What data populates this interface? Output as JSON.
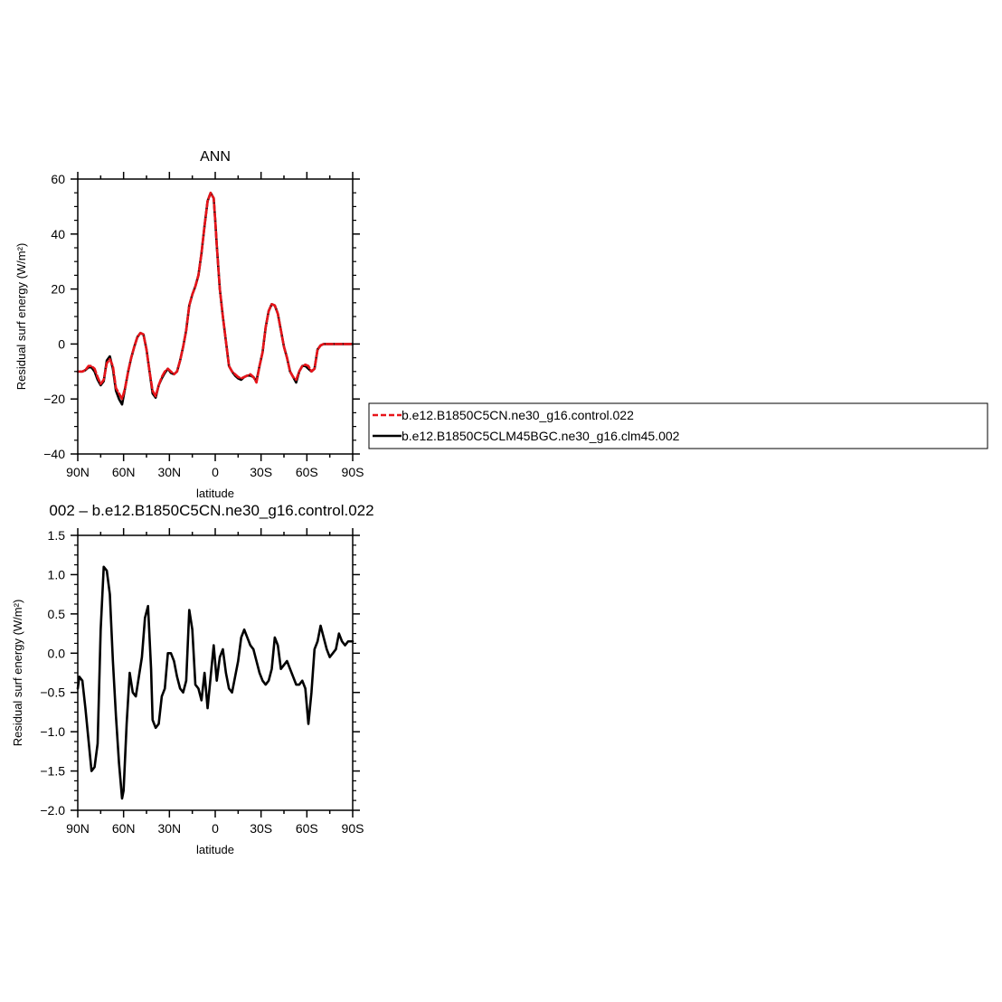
{
  "colors": {
    "control": "#e8141a",
    "clm45": "#000000",
    "axis": "#000000",
    "background": "#ffffff"
  },
  "top_panel": {
    "title": "ANN",
    "ylabel": "Residual surf energy (W/m²)",
    "xlabel": "latitude"
  },
  "bottom_panel": {
    "title": "002 – b.e12.B1850C5CN.ne30_g16.control.022",
    "ylabel": "Residual surf energy (W/m²)",
    "xlabel": "latitude"
  },
  "legend": {
    "items": [
      {
        "label": "b.e12.B1850C5CN.ne30_g16.control.022",
        "style": "dashed",
        "color": "#e8141a"
      },
      {
        "label": "b.e12.B1850C5CLM45BGC.ne30_g16.clm45.002",
        "style": "solid",
        "color": "#000000"
      }
    ]
  },
  "chart_data": [
    {
      "type": "line",
      "title": "ANN",
      "xlabel": "latitude",
      "ylabel": "Residual surf energy (W/m²)",
      "xlim": [
        90,
        -90
      ],
      "ylim": [
        -40,
        60
      ],
      "xticks": [
        90,
        60,
        30,
        0,
        -30,
        -60,
        -90
      ],
      "xtick_labels": [
        "90N",
        "60N",
        "30N",
        "0",
        "30S",
        "60S",
        "90S"
      ],
      "yticks": [
        -40,
        -20,
        0,
        20,
        40,
        60
      ],
      "ytick_labels": [
        "−40",
        "−20",
        "0",
        "20",
        "40",
        "60"
      ],
      "grid": false,
      "legend_position": "right",
      "series": [
        {
          "name": "b.e12.B1850C5CN.ne30_g16.control.022",
          "style": "dashed",
          "color": "#e8141a",
          "x": [
            90,
            87,
            85,
            83,
            81,
            79,
            77,
            75,
            73,
            71,
            69,
            67,
            65,
            63,
            61,
            59,
            57,
            55,
            53,
            51,
            49,
            47,
            45,
            43,
            41,
            39,
            37,
            35,
            33,
            31,
            29,
            27,
            25,
            23,
            21,
            19,
            17,
            15,
            13,
            11,
            9,
            7,
            5,
            3,
            1,
            0,
            -1,
            -3,
            -5,
            -7,
            -9,
            -11,
            -13,
            -15,
            -17,
            -19,
            -21,
            -23,
            -25,
            -27,
            -29,
            -31,
            -33,
            -35,
            -37,
            -39,
            -41,
            -43,
            -45,
            -47,
            -49,
            -51,
            -53,
            -55,
            -57,
            -59,
            -61,
            -63,
            -65,
            -67,
            -69,
            -71,
            -73,
            -75,
            -77,
            -79,
            -80,
            -81,
            -83,
            -85,
            -87,
            -90
          ],
          "y": [
            -10,
            -10,
            -9.5,
            -8,
            -8,
            -9,
            -12,
            -14.5,
            -13,
            -7,
            -5.5,
            -8,
            -16,
            -18,
            -20,
            -16,
            -10,
            -5,
            -1,
            2.5,
            4,
            3.5,
            -2,
            -10,
            -17,
            -19,
            -15,
            -12,
            -10,
            -9,
            -10,
            -11,
            -10,
            -6,
            -1,
            5,
            14,
            18,
            21,
            25,
            33,
            43,
            52,
            55,
            53,
            45,
            36,
            20,
            10,
            1,
            -8,
            -10,
            -11,
            -12,
            -12.5,
            -12,
            -11.5,
            -11,
            -12,
            -14,
            -8,
            -3,
            6,
            12,
            14.5,
            14,
            11,
            5,
            -1,
            -5,
            -10,
            -12,
            -13,
            -10,
            -8,
            -7.5,
            -8,
            -10,
            -9,
            -2,
            -0.5,
            0,
            0,
            0,
            0,
            0,
            0,
            0,
            0,
            0,
            0,
            0
          ]
        },
        {
          "name": "b.e12.B1850C5CLM45BGC.ne30_g16.clm45.002",
          "style": "solid",
          "color": "#000000",
          "x": [
            90,
            87,
            85,
            83,
            81,
            79,
            77,
            75,
            73,
            71,
            69,
            67,
            65,
            63,
            61,
            59,
            57,
            55,
            53,
            51,
            49,
            47,
            45,
            43,
            41,
            39,
            37,
            35,
            33,
            31,
            29,
            27,
            25,
            23,
            21,
            19,
            17,
            15,
            13,
            11,
            9,
            7,
            5,
            3,
            1,
            0,
            -1,
            -3,
            -5,
            -7,
            -9,
            -11,
            -13,
            -15,
            -17,
            -19,
            -21,
            -23,
            -25,
            -27,
            -29,
            -31,
            -33,
            -35,
            -37,
            -39,
            -41,
            -43,
            -45,
            -47,
            -49,
            -51,
            -53,
            -55,
            -57,
            -59,
            -61,
            -63,
            -65,
            -67,
            -69,
            -71,
            -73,
            -75,
            -77,
            -79,
            -80,
            -81,
            -83,
            -85,
            -87,
            -90
          ],
          "y": [
            -10,
            -10,
            -9.5,
            -8.5,
            -8.5,
            -10,
            -13,
            -15,
            -13.5,
            -6,
            -4.5,
            -9,
            -17,
            -20,
            -22,
            -16,
            -10,
            -5,
            -1,
            2.5,
            4,
            3.5,
            -2,
            -10,
            -18,
            -19.5,
            -15,
            -12.5,
            -10.5,
            -9,
            -10.5,
            -11,
            -10,
            -6,
            -1,
            5,
            14,
            18,
            21,
            25,
            33,
            43,
            52,
            55,
            53,
            45,
            36,
            20,
            10,
            1,
            -8,
            -10,
            -11.5,
            -12.5,
            -13,
            -12,
            -11.5,
            -11.5,
            -12,
            -13.5,
            -8,
            -3,
            6,
            12,
            14.5,
            14,
            11,
            5,
            -1,
            -5,
            -10,
            -12,
            -14,
            -10,
            -8,
            -8,
            -9,
            -10,
            -9,
            -2,
            -0.5,
            0,
            0,
            0,
            0,
            0,
            0,
            0,
            0,
            0,
            0,
            0
          ]
        }
      ]
    },
    {
      "type": "line",
      "title": "002 – b.e12.B1850C5CN.ne30_g16.control.022",
      "xlabel": "latitude",
      "ylabel": "Residual surf energy (W/m²)",
      "xlim": [
        90,
        -90
      ],
      "ylim": [
        -2.0,
        1.5
      ],
      "xticks": [
        90,
        60,
        30,
        0,
        -30,
        -60,
        -90
      ],
      "xtick_labels": [
        "90N",
        "60N",
        "30N",
        "0",
        "30S",
        "60S",
        "90S"
      ],
      "yticks": [
        -2.0,
        -1.5,
        -1.0,
        -0.5,
        0.0,
        0.5,
        1.0,
        1.5
      ],
      "ytick_labels": [
        "−2.0",
        "−1.5",
        "−1.0",
        "−0.5",
        "0.0",
        "0.5",
        "1.0",
        "1.5"
      ],
      "grid": false,
      "series": [
        {
          "color": "#000000",
          "x": [
            90,
            89,
            87,
            85,
            83,
            81,
            79,
            77,
            75,
            73,
            71,
            69,
            67,
            65,
            63,
            61,
            60,
            58,
            56,
            54,
            52,
            50,
            48,
            46,
            44,
            42,
            41,
            39,
            37,
            35,
            33,
            31,
            29,
            27,
            25,
            23,
            21,
            19,
            17,
            15,
            13,
            11,
            9,
            7,
            5,
            3,
            1,
            -1,
            -3,
            -5,
            -7,
            -9,
            -11,
            -13,
            -15,
            -17,
            -19,
            -21,
            -23,
            -25,
            -27,
            -29,
            -31,
            -33,
            -35,
            -37,
            -39,
            -41,
            -43,
            -45,
            -47,
            -49,
            -51,
            -53,
            -55,
            -57,
            -59,
            -61,
            -63,
            -65,
            -67,
            -69,
            -71,
            -73,
            -75,
            -77,
            -79,
            -81,
            -83,
            -85,
            -87,
            -89,
            -90
          ],
          "y": [
            -0.45,
            -0.3,
            -0.35,
            -0.7,
            -1.1,
            -1.5,
            -1.45,
            -1.15,
            0.3,
            1.1,
            1.05,
            0.75,
            -0.1,
            -0.8,
            -1.4,
            -1.85,
            -1.75,
            -0.9,
            -0.25,
            -0.5,
            -0.55,
            -0.3,
            -0.05,
            0.45,
            0.6,
            -0.2,
            -0.85,
            -0.95,
            -0.9,
            -0.55,
            -0.45,
            0.0,
            0.0,
            -0.1,
            -0.3,
            -0.45,
            -0.5,
            -0.35,
            0.55,
            0.3,
            -0.4,
            -0.45,
            -0.6,
            -0.25,
            -0.7,
            -0.3,
            0.1,
            -0.35,
            -0.05,
            0.05,
            -0.25,
            -0.45,
            -0.5,
            -0.3,
            -0.1,
            0.2,
            0.3,
            0.2,
            0.1,
            0.05,
            -0.1,
            -0.25,
            -0.35,
            -0.4,
            -0.35,
            -0.2,
            0.2,
            0.1,
            -0.2,
            -0.15,
            -0.1,
            -0.2,
            -0.3,
            -0.4,
            -0.4,
            -0.35,
            -0.45,
            -0.9,
            -0.5,
            0.05,
            0.15,
            0.35,
            0.2,
            0.05,
            -0.05,
            0.0,
            0.05,
            0.25,
            0.15,
            0.1,
            0.15,
            0.15,
            0.15
          ]
        }
      ]
    }
  ]
}
